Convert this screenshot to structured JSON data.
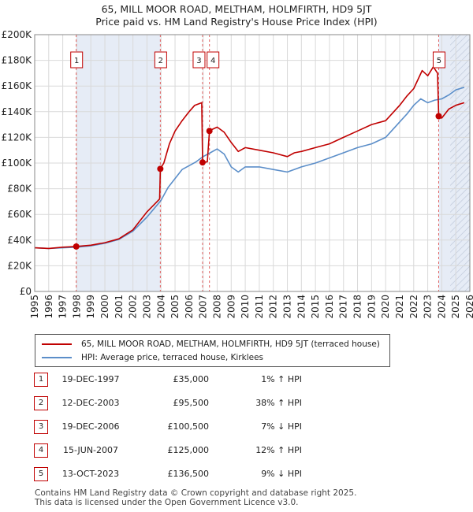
{
  "chart_data": {
    "type": "line",
    "title": "65, MILL MOOR ROAD, MELTHAM, HOLMFIRTH, HD9 5JT",
    "subtitle": "Price paid vs. HM Land Registry's House Price Index (HPI)",
    "xlim": [
      1995,
      2026
    ],
    "ylim": [
      0,
      200000
    ],
    "x_ticks": [
      1995,
      1996,
      1997,
      1998,
      1999,
      2000,
      2001,
      2002,
      2003,
      2004,
      2005,
      2006,
      2007,
      2008,
      2009,
      2010,
      2011,
      2012,
      2013,
      2014,
      2015,
      2016,
      2017,
      2018,
      2019,
      2020,
      2021,
      2022,
      2023,
      2024,
      2025,
      2026
    ],
    "y_ticks": [
      0,
      20000,
      40000,
      60000,
      80000,
      100000,
      120000,
      140000,
      160000,
      180000,
      200000
    ],
    "y_tick_labels": [
      "£0",
      "£20K",
      "£40K",
      "£60K",
      "£80K",
      "£100K",
      "£120K",
      "£140K",
      "£160K",
      "£180K",
      "£200K"
    ],
    "grid": true,
    "series": [
      {
        "name": "65, MILL MOOR ROAD, MELTHAM, HOLMFIRTH, HD9 5JT (terraced house)",
        "color": "#c00000",
        "points": [
          [
            1995.0,
            34000
          ],
          [
            1996.0,
            33500
          ],
          [
            1997.0,
            34500
          ],
          [
            1997.96,
            35000
          ],
          [
            1998.5,
            35500
          ],
          [
            1999.0,
            36000
          ],
          [
            2000.0,
            38000
          ],
          [
            2001.0,
            41000
          ],
          [
            2002.0,
            48000
          ],
          [
            2003.0,
            62000
          ],
          [
            2003.9,
            72000
          ],
          [
            2003.95,
            95500
          ],
          [
            2004.2,
            100000
          ],
          [
            2004.6,
            115000
          ],
          [
            2005.0,
            125000
          ],
          [
            2005.5,
            133000
          ],
          [
            2006.0,
            140000
          ],
          [
            2006.4,
            145000
          ],
          [
            2006.9,
            147000
          ],
          [
            2006.96,
            100500
          ],
          [
            2007.3,
            101000
          ],
          [
            2007.45,
            125000
          ],
          [
            2007.6,
            126000
          ],
          [
            2008.0,
            128000
          ],
          [
            2008.5,
            124000
          ],
          [
            2009.0,
            116000
          ],
          [
            2009.5,
            109000
          ],
          [
            2010.0,
            112000
          ],
          [
            2011.0,
            110000
          ],
          [
            2012.0,
            108000
          ],
          [
            2013.0,
            105000
          ],
          [
            2013.5,
            108000
          ],
          [
            2014.0,
            109000
          ],
          [
            2015.0,
            112000
          ],
          [
            2016.0,
            115000
          ],
          [
            2017.0,
            120000
          ],
          [
            2018.0,
            125000
          ],
          [
            2019.0,
            130000
          ],
          [
            2020.0,
            133000
          ],
          [
            2021.0,
            145000
          ],
          [
            2021.5,
            152000
          ],
          [
            2022.0,
            158000
          ],
          [
            2022.6,
            172000
          ],
          [
            2023.0,
            168000
          ],
          [
            2023.4,
            175000
          ],
          [
            2023.7,
            170000
          ],
          [
            2023.78,
            136500
          ],
          [
            2024.0,
            135000
          ],
          [
            2024.5,
            142000
          ],
          [
            2025.0,
            145000
          ],
          [
            2025.6,
            147000
          ]
        ]
      },
      {
        "name": "HPI: Average price, terraced house, Kirklees",
        "color": "#5b8ec9",
        "points": [
          [
            1995.0,
            34000
          ],
          [
            1996.0,
            33500
          ],
          [
            1997.0,
            34000
          ],
          [
            1998.0,
            34500
          ],
          [
            1999.0,
            35500
          ],
          [
            2000.0,
            37500
          ],
          [
            2001.0,
            40500
          ],
          [
            2002.0,
            47000
          ],
          [
            2003.0,
            58000
          ],
          [
            2004.0,
            71000
          ],
          [
            2004.5,
            81000
          ],
          [
            2005.0,
            88000
          ],
          [
            2005.5,
            95000
          ],
          [
            2006.0,
            98000
          ],
          [
            2006.5,
            101000
          ],
          [
            2007.0,
            105000
          ],
          [
            2007.5,
            108000
          ],
          [
            2008.0,
            111000
          ],
          [
            2008.5,
            107000
          ],
          [
            2009.0,
            97000
          ],
          [
            2009.5,
            93000
          ],
          [
            2010.0,
            97000
          ],
          [
            2011.0,
            97000
          ],
          [
            2012.0,
            95000
          ],
          [
            2013.0,
            93000
          ],
          [
            2014.0,
            97000
          ],
          [
            2015.0,
            100000
          ],
          [
            2016.0,
            104000
          ],
          [
            2017.0,
            108000
          ],
          [
            2018.0,
            112000
          ],
          [
            2019.0,
            115000
          ],
          [
            2020.0,
            120000
          ],
          [
            2021.0,
            132000
          ],
          [
            2021.5,
            138000
          ],
          [
            2022.0,
            145000
          ],
          [
            2022.5,
            150000
          ],
          [
            2023.0,
            147000
          ],
          [
            2023.5,
            149000
          ],
          [
            2024.0,
            150000
          ],
          [
            2024.5,
            153000
          ],
          [
            2025.0,
            157000
          ],
          [
            2025.6,
            159000
          ]
        ]
      }
    ],
    "shaded_regions": [
      {
        "from": 1997.96,
        "to": 2003.95,
        "label": "purchase-1-to-2"
      },
      {
        "from": 2023.78,
        "to": 2024.6,
        "label": "purchase-5-to-now"
      },
      {
        "from": 2024.6,
        "to": 2026,
        "label": "future",
        "hatched": true
      }
    ],
    "markers": [
      {
        "id": "1",
        "x": 1997.96,
        "y": 35000
      },
      {
        "id": "2",
        "x": 2003.95,
        "y": 95500
      },
      {
        "id": "3",
        "x": 2006.96,
        "y": 100500
      },
      {
        "id": "4",
        "x": 2007.45,
        "y": 125000
      },
      {
        "id": "5",
        "x": 2023.78,
        "y": 136500
      }
    ]
  },
  "legend": {
    "property_label": "65, MILL MOOR ROAD, MELTHAM, HOLMFIRTH, HD9 5JT (terraced house)",
    "hpi_label": "HPI: Average price, terraced house, Kirklees",
    "property_color": "#c00000",
    "hpi_color": "#5b8ec9"
  },
  "transactions": [
    {
      "num": "1",
      "date": "19-DEC-1997",
      "price": "£35,000",
      "hpi": "1% ↑ HPI"
    },
    {
      "num": "2",
      "date": "12-DEC-2003",
      "price": "£95,500",
      "hpi": "38% ↑ HPI"
    },
    {
      "num": "3",
      "date": "19-DEC-2006",
      "price": "£100,500",
      "hpi": "7% ↓ HPI"
    },
    {
      "num": "4",
      "date": "15-JUN-2007",
      "price": "£125,000",
      "hpi": "12% ↑ HPI"
    },
    {
      "num": "5",
      "date": "13-OCT-2023",
      "price": "£136,500",
      "hpi": "9% ↓ HPI"
    }
  ],
  "footer": {
    "line1": "Contains HM Land Registry data © Crown copyright and database right 2025.",
    "line2": "This data is licensed under the Open Government Licence v3.0."
  }
}
